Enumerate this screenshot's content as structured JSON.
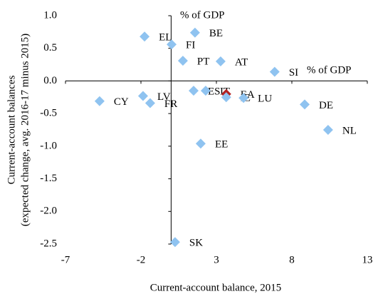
{
  "chart_data": {
    "type": "scatter",
    "x_label": "Current-account balance, 2015",
    "y_label": [
      "Current-account balances",
      "(expected change, avg. 2016-17 minus 2015)"
    ],
    "annotations": [
      "% of GDP",
      "% of GDP"
    ],
    "labels": [
      "EL",
      "BE",
      "FI",
      "PT",
      "AT",
      "SI",
      "ES",
      "IT",
      "EA",
      "IE",
      "LU",
      "DE",
      "NL",
      "CY",
      "LV",
      "FR",
      "EE",
      "SK"
    ],
    "x": [
      -1.76,
      1.58,
      0.03,
      0.78,
      3.28,
      6.86,
      1.49,
      2.29,
      3.65,
      3.65,
      4.8,
      8.85,
      10.4,
      -4.74,
      -1.86,
      -1.39,
      1.96,
      0.26
    ],
    "values": [
      0.68,
      0.74,
      0.56,
      0.31,
      0.3,
      0.14,
      -0.15,
      -0.15,
      -0.2,
      -0.25,
      -0.26,
      -0.36,
      -0.75,
      -0.31,
      -0.23,
      -0.34,
      -0.96,
      -2.47
    ],
    "colors": [
      "#8fc3f0",
      "#8fc3f0",
      "#8fc3f0",
      "#8fc3f0",
      "#8fc3f0",
      "#8fc3f0",
      "#8fc3f0",
      "#8fc3f0",
      "#b22222",
      "#8fc3f0",
      "#8fc3f0",
      "#8fc3f0",
      "#8fc3f0",
      "#8fc3f0",
      "#8fc3f0",
      "#8fc3f0",
      "#8fc3f0",
      "#8fc3f0"
    ],
    "xlim": [
      -7,
      13
    ],
    "xticks": [
      -7,
      -2,
      3,
      8,
      13
    ],
    "ylim": [
      -2.5,
      1
    ],
    "yticks": [
      {
        "value": 1,
        "label": "1.0"
      },
      0.5,
      {
        "value": 0,
        "label": "0.0"
      },
      -0.5,
      {
        "value": -1,
        "label": "-1.0"
      },
      -1.5,
      {
        "value": -2,
        "label": "-2.0"
      },
      -2.5
    ]
  }
}
